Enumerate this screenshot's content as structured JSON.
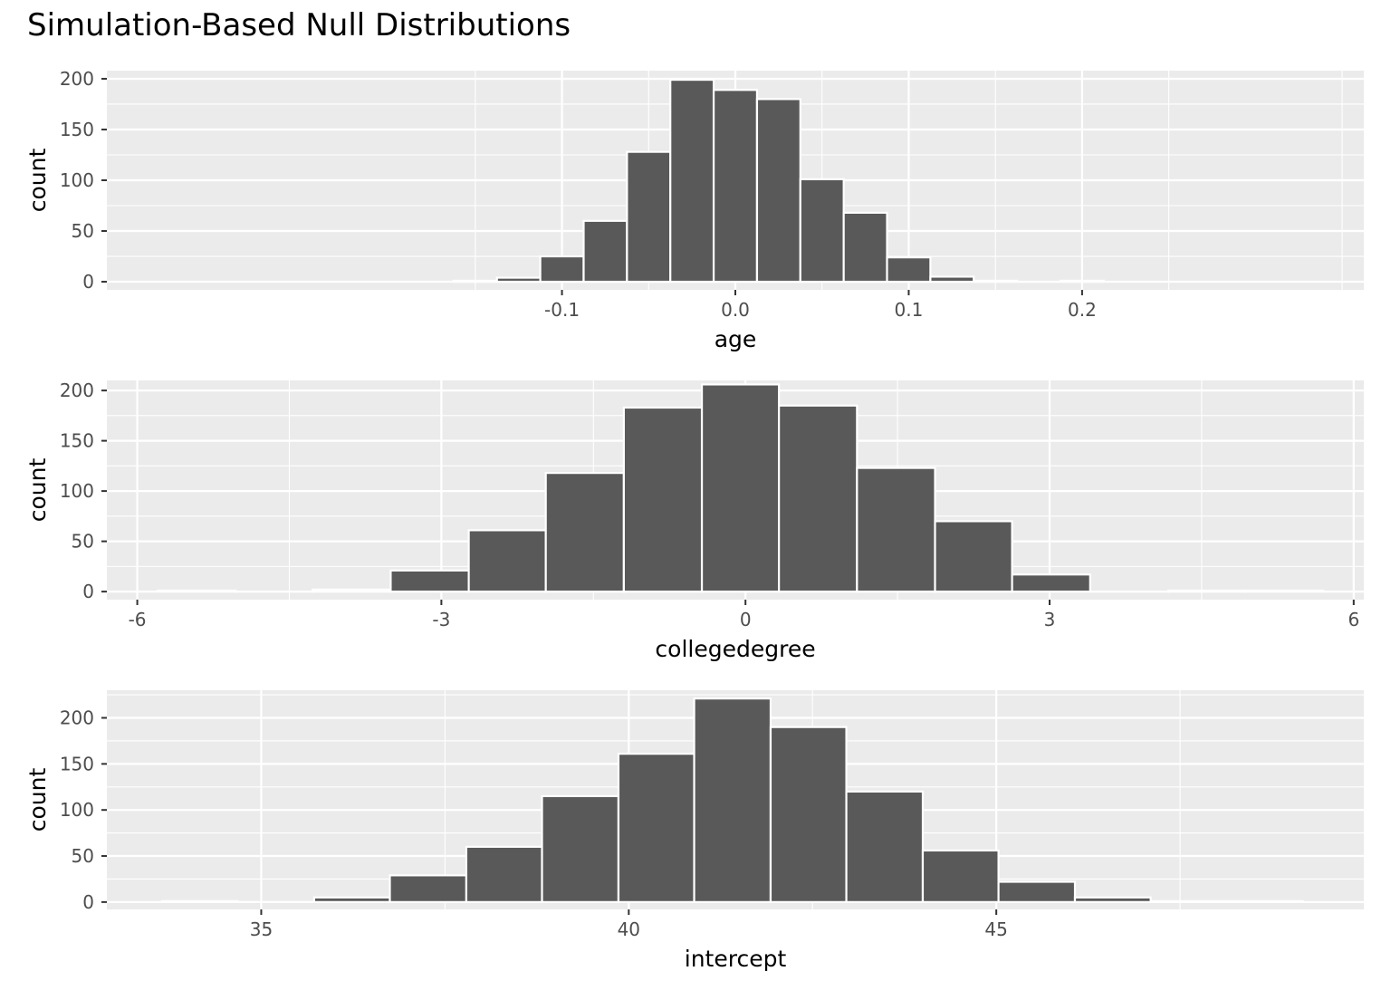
{
  "title": "Simulation-Based Null Distributions",
  "colors": {
    "panel": "#ebebeb",
    "grid": "#ffffff",
    "bar": "#595959",
    "bar_outline": "#ffffff",
    "text": "#4d4d4d"
  },
  "chart_data": [
    {
      "type": "bar",
      "subtype": "histogram",
      "xlabel": "age",
      "ylabel": "count",
      "xlim": [
        -0.3625,
        0.3625
      ],
      "ylim": [
        -8,
        208
      ],
      "x_ticks": [
        -0.1,
        0.0,
        0.1,
        0.2
      ],
      "x_tick_labels": [
        "-0.1",
        "0.0",
        "0.1",
        "0.2"
      ],
      "y_ticks": [
        0,
        50,
        100,
        150,
        200
      ],
      "y_tick_labels": [
        "0",
        "50",
        "100",
        "150",
        "200"
      ],
      "bin_edges": [
        -0.1625,
        -0.1375,
        -0.1125,
        -0.0875,
        -0.0625,
        -0.0375,
        -0.0125,
        0.0125,
        0.0375,
        0.0625,
        0.0875,
        0.1125,
        0.1375,
        0.1625,
        0.1875,
        0.2125
      ],
      "counts": [
        1,
        4,
        25,
        60,
        128,
        199,
        189,
        180,
        101,
        68,
        24,
        5,
        1,
        0,
        1
      ]
    },
    {
      "type": "bar",
      "subtype": "histogram",
      "xlabel": "collegedegree",
      "ylabel": "count",
      "xlim": [
        -6.3,
        6.1
      ],
      "ylim": [
        -8,
        210
      ],
      "x_ticks": [
        -6,
        -3,
        0,
        3,
        6
      ],
      "x_tick_labels": [
        "-6",
        "-3",
        "0",
        "3",
        "6"
      ],
      "y_ticks": [
        0,
        50,
        100,
        150,
        200
      ],
      "y_tick_labels": [
        "0",
        "50",
        "100",
        "150",
        "200"
      ],
      "bin_edges": [
        -5.8,
        -5.03,
        -4.27,
        -3.5,
        -2.73,
        -1.97,
        -1.2,
        -0.43,
        0.33,
        1.1,
        1.87,
        2.63,
        3.4,
        4.17,
        4.93,
        5.7
      ],
      "counts": [
        1,
        0,
        2,
        21,
        61,
        118,
        183,
        206,
        185,
        123,
        70,
        17,
        0,
        1,
        1
      ]
    },
    {
      "type": "bar",
      "subtype": "histogram",
      "xlabel": "intercept",
      "ylabel": "count",
      "xlim": [
        32.9,
        50.0
      ],
      "ylim": [
        -8,
        230
      ],
      "x_ticks": [
        35,
        40,
        45
      ],
      "x_tick_labels": [
        "35",
        "40",
        "45"
      ],
      "y_ticks": [
        0,
        50,
        100,
        150,
        200
      ],
      "y_tick_labels": [
        "0",
        "50",
        "100",
        "150",
        "200"
      ],
      "bin_edges": [
        33.65,
        34.68,
        35.72,
        36.75,
        37.79,
        38.82,
        39.86,
        40.89,
        41.93,
        42.96,
        44.0,
        45.03,
        46.07,
        47.1,
        48.14,
        49.17
      ],
      "counts": [
        1,
        0,
        5,
        29,
        60,
        115,
        161,
        221,
        190,
        120,
        56,
        22,
        5,
        1,
        1
      ]
    }
  ]
}
